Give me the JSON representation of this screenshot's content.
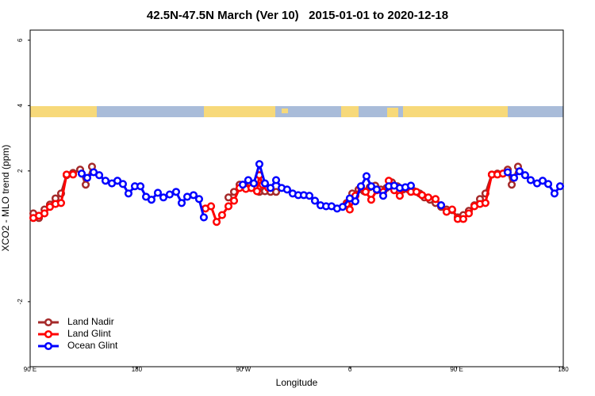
{
  "chart_data": {
    "type": "line",
    "title": "42.5N-47.5N March (Ver 10)   2015-01-01 to 2020-12-18",
    "x_label": "Longitude",
    "y_label": "XCO2 - MLO trend (ppm)",
    "xlim": [
      90,
      540
    ],
    "xticks": [
      {
        "value": 90,
        "label": "90 E"
      },
      180,
      {
        "value": 270,
        "label": "90 W"
      },
      {
        "value": 360,
        "label": "0"
      },
      {
        "value": 450,
        "label": "90 E"
      },
      {
        "value": 540,
        "label": "180"
      }
    ],
    "ylim": [
      -3.99,
      6.31
    ],
    "yticks": [
      -2,
      2,
      4,
      6
    ],
    "legend": "bottomleft",
    "series": [
      {
        "name": "Land Nadir",
        "color": "#a52a2a",
        "x": [
          92.7,
          97.4,
          102.1,
          106.7,
          111.4,
          116.1,
          120.8,
          126.2,
          132.2,
          136.9,
          142.2,
          null,
          257.4,
          262.1,
          266.8,
          271.5,
          276.2,
          283.5,
          288.2,
          292.9,
          297.6,
          null,
          357.2,
          361.9,
          367.2,
          371.9,
          376.6,
          381.3,
          386.0,
          390.7,
          395.4,
          400.0,
          404.7,
          409.4,
          414.1,
          418.8,
          422.8,
          427.5,
          432.2,
          436.9,
          441.5,
          446.2,
          450.9,
          455.6,
          460.3,
          465.0,
          469.7,
          474.3,
          479.7,
          484.4,
          489.1,
          493.1,
          496.5,
          501.8
        ],
        "values": [
          0.7,
          0.56,
          0.82,
          0.97,
          1.16,
          1.31,
          1.87,
          1.94,
          2.04,
          1.58,
          2.13,
          null,
          1.19,
          1.36,
          1.58,
          1.53,
          1.48,
          1.36,
          1.38,
          1.36,
          1.36,
          null,
          1.02,
          1.31,
          1.43,
          1.38,
          1.5,
          1.55,
          1.43,
          1.48,
          1.65,
          1.53,
          1.43,
          1.43,
          1.38,
          1.31,
          1.19,
          1.12,
          1.02,
          0.9,
          0.82,
          0.8,
          0.58,
          0.65,
          0.78,
          0.95,
          1.14,
          1.31,
          1.89,
          1.92,
          1.92,
          2.04,
          1.58,
          2.13
        ]
      },
      {
        "name": "Land Glint",
        "color": "#ff0000",
        "x": [
          92.7,
          97.4,
          102.1,
          106.7,
          111.4,
          116.1,
          120.8,
          126.2,
          null,
          238.0,
          242.7,
          247.4,
          252.0,
          257.4,
          262.1,
          266.8,
          272.1,
          276.8,
          281.5,
          283.5,
          286.2,
          290.9,
          null,
          357.2,
          359.8,
          364.5,
          369.2,
          373.2,
          377.9,
          382.6,
          388.0,
          392.7,
          397.3,
          402.0,
          406.7,
          411.4,
          416.1,
          420.8,
          426.1,
          432.2,
          436.9,
          441.5,
          446.2,
          450.9,
          455.6,
          460.3,
          465.0,
          469.7,
          474.3,
          479.7,
          484.4,
          489.1
        ],
        "values": [
          0.56,
          0.63,
          0.7,
          0.9,
          0.99,
          1.02,
          1.89,
          1.89,
          null,
          0.85,
          0.92,
          0.44,
          0.65,
          0.92,
          1.09,
          1.48,
          1.45,
          1.48,
          1.38,
          1.87,
          1.58,
          1.48,
          null,
          0.99,
          0.82,
          1.24,
          1.5,
          1.36,
          1.12,
          1.41,
          1.36,
          1.7,
          1.41,
          1.24,
          1.48,
          1.36,
          1.36,
          1.26,
          1.19,
          1.14,
          0.95,
          0.75,
          0.82,
          0.53,
          0.53,
          0.7,
          0.92,
          0.99,
          1.02,
          1.89,
          1.89,
          1.92
        ]
      },
      {
        "name": "Ocean Glint",
        "color": "#0000ff",
        "x": [
          133.5,
          138.2,
          143.6,
          148.3,
          153.6,
          159.0,
          163.7,
          168.3,
          173.0,
          178.4,
          183.1,
          187.8,
          192.4,
          197.8,
          202.5,
          207.8,
          213.2,
          217.9,
          222.6,
          227.9,
          232.6,
          236.6,
          null,
          269.5,
          274.1,
          278.8,
          283.5,
          288.2,
          292.9,
          297.6,
          302.3,
          306.9,
          311.6,
          316.3,
          321.0,
          325.7,
          330.4,
          335.1,
          339.8,
          344.4,
          349.1,
          353.8,
          359.8,
          364.5,
          369.2,
          373.9,
          377.9,
          382.6,
          388.0,
          392.7,
          397.3,
          402.0,
          406.7,
          411.4,
          null,
          436.9,
          null,
          493.1,
          498.5,
          503.1,
          507.8,
          512.5,
          517.9,
          522.6,
          527.3,
          532.6,
          537.3
        ],
        "values": [
          1.92,
          1.79,
          1.96,
          1.87,
          1.7,
          1.62,
          1.7,
          1.6,
          1.31,
          1.53,
          1.53,
          1.21,
          1.12,
          1.33,
          1.19,
          1.28,
          1.36,
          1.02,
          1.21,
          1.26,
          1.14,
          0.58,
          null,
          1.58,
          1.72,
          1.62,
          2.21,
          1.62,
          1.48,
          1.72,
          1.48,
          1.43,
          1.31,
          1.26,
          1.26,
          1.24,
          1.09,
          0.95,
          0.92,
          0.92,
          0.85,
          0.9,
          1.16,
          1.07,
          1.53,
          1.84,
          1.53,
          1.43,
          1.24,
          1.53,
          1.55,
          1.48,
          1.5,
          1.55,
          null,
          0.95,
          null,
          1.96,
          1.79,
          1.99,
          1.87,
          1.72,
          1.62,
          1.7,
          1.6,
          1.31,
          1.53
        ]
      }
    ]
  }
}
